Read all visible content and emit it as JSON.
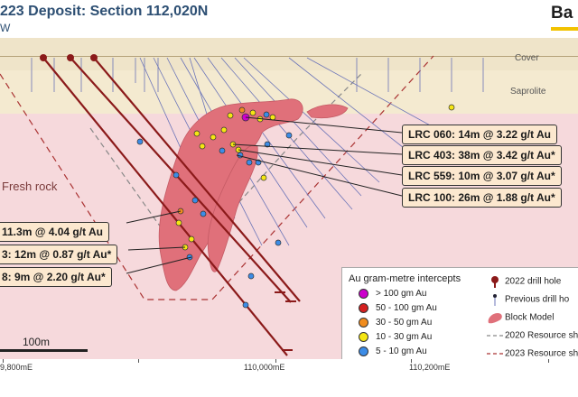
{
  "header": {
    "title": "223 Deposit: Section 112,020N",
    "subtitle": "W",
    "logo_text": "Ba"
  },
  "layers": {
    "cover": "Cover",
    "saprolite": "Saprolite",
    "fresh": "Fresh rock"
  },
  "callouts": [
    "LRC 060: 14m @ 3.22 g/t Au",
    "LRC 403: 38m @ 3.42 g/t Au*",
    "LRC 559: 10m @ 3.07 g/t Au*",
    "LRC 100: 26m @ 1.88 g/t Au*"
  ],
  "callouts_left": [
    "11.3m @ 4.04 g/t Au",
    "3: 12m @ 0.87 g/t Au*",
    "8: 9m @ 2.20 g/t Au*"
  ],
  "legend": {
    "title": "Au gram-metre intercepts",
    "grades": [
      {
        "label": "> 100 gm Au",
        "color": "#cc00cc"
      },
      {
        "label": "50 - 100 gm Au",
        "color": "#d42020"
      },
      {
        "label": "30 - 50 gm Au",
        "color": "#f08c1e"
      },
      {
        "label": "10 - 30 gm Au",
        "color": "#f5e613"
      },
      {
        "label": "5 - 10 gm Au",
        "color": "#3c8ce6"
      }
    ],
    "symbols": [
      {
        "label": "2022 drill hole",
        "icon": "drill-2022-icon"
      },
      {
        "label": "Previous drill ho",
        "icon": "drill-previous-icon"
      },
      {
        "label": "Block Model",
        "icon": "block-model-icon"
      },
      {
        "label": "2020 Resource sh",
        "icon": "resource-2020-icon"
      },
      {
        "label": "2023 Resource sh",
        "icon": "resource-2023-icon"
      }
    ]
  },
  "scale": {
    "label": "100m"
  },
  "eastings": [
    "9,800mE",
    "110,000mE",
    "110,200mE"
  ],
  "colors": {
    "title": "#2d4f73",
    "cover": "#efe4c9",
    "saprolite": "#f4ead0",
    "fresh_rock": "#f6d9dc",
    "block_model": "#e0707a",
    "drill_2022": "#8b1a1a",
    "previous_drill": "#6b74b8",
    "callout_fill": "#fce8cf",
    "accent": "#f2c200"
  }
}
